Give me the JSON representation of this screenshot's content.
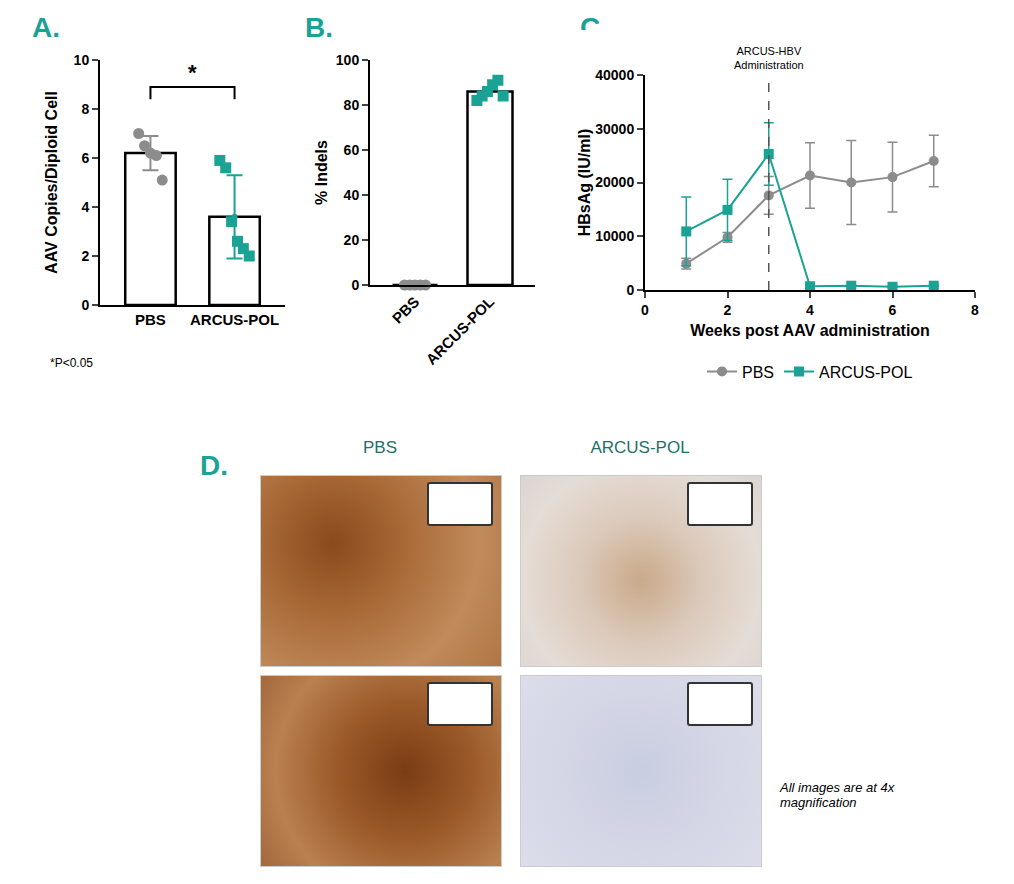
{
  "chart_data": [
    {
      "panel": "A.",
      "type": "bar",
      "categories": [
        "PBS",
        "ARCUS-POL"
      ],
      "values": [
        6.2,
        3.6
      ],
      "errors": [
        0.7,
        1.7
      ],
      "points": [
        [
          7.0,
          6.5,
          6.2,
          6.1,
          5.1
        ],
        [
          5.9,
          5.6,
          3.4,
          2.6,
          2.3,
          2.0
        ]
      ],
      "colors": [
        "#8c8c8c",
        "#1aa395"
      ],
      "ylabel": "AAV Copies/Diploid Cell",
      "ylim": [
        0,
        10
      ],
      "yticks": [
        0,
        2,
        4,
        6,
        8,
        10
      ],
      "significance": "*",
      "note": "*P<0.05"
    },
    {
      "panel": "B.",
      "type": "bar",
      "categories": [
        "PBS",
        "ARCUS-POL"
      ],
      "values": [
        0,
        86
      ],
      "points": [
        [
          0,
          0,
          0,
          0,
          0
        ],
        [
          82,
          84,
          86,
          89,
          91,
          84
        ]
      ],
      "colors": [
        "#8c8c8c",
        "#1aa395"
      ],
      "ylabel": "% Indels",
      "ylim": [
        0,
        100
      ],
      "yticks": [
        0,
        20,
        40,
        60,
        80,
        100
      ]
    },
    {
      "panel": "C.",
      "type": "line",
      "x": [
        1,
        2,
        3,
        4,
        5,
        6,
        7
      ],
      "series": [
        {
          "name": "PBS",
          "color": "#8c8c8c",
          "marker": "circle",
          "values": [
            4900,
            9800,
            17600,
            21300,
            20000,
            21000,
            24000
          ],
          "errors": [
            1000,
            900,
            3500,
            6100,
            7800,
            6500,
            4800
          ]
        },
        {
          "name": "ARCUS-POL",
          "color": "#1aa395",
          "marker": "square",
          "values": [
            10900,
            14900,
            25300,
            700,
            800,
            600,
            800
          ],
          "errors": [
            6400,
            5700,
            5800,
            150,
            150,
            150,
            150
          ]
        }
      ],
      "xlabel": "Weeks post AAV administration",
      "ylabel": "HBsAg (IU/ml)",
      "xlim": [
        0,
        8
      ],
      "xticks": [
        0,
        2,
        4,
        6,
        8
      ],
      "ylim": [
        0,
        40000
      ],
      "yticks": [
        0,
        10000,
        20000,
        30000,
        40000
      ],
      "vline": 3,
      "annotation": "ARCUS-HBV Administration",
      "legend": "bottom"
    }
  ],
  "images": {
    "panel": "D.",
    "columns": [
      "PBS",
      "ARCUS-POL"
    ],
    "note": "All images are at 4x magnification"
  }
}
